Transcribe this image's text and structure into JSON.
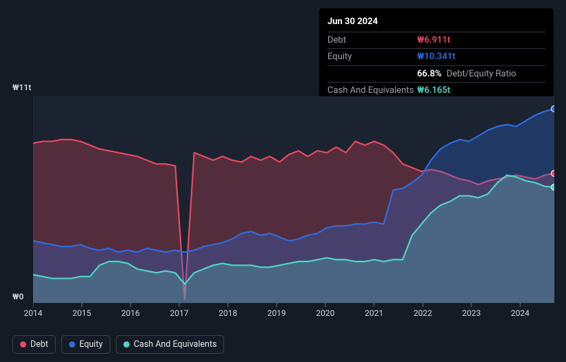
{
  "chart": {
    "type": "area",
    "background_color": "#151b24",
    "plot_bg": "#1b2330",
    "plot_border": "#2a3340",
    "grid_color": "#2a3340",
    "y_axis": {
      "max_label": "₩11t",
      "zero_label": "₩0",
      "ymax": 11,
      "ymin": 0
    },
    "x_axis": {
      "ticks": [
        "2014",
        "2015",
        "2016",
        "2017",
        "2018",
        "2019",
        "2020",
        "2021",
        "2022",
        "2023",
        "2024"
      ]
    },
    "series": [
      {
        "id": "debt",
        "label": "Debt",
        "color": "#e8495f",
        "fill": "rgba(232,73,95,0.28)",
        "values": [
          8.5,
          8.6,
          8.6,
          8.7,
          8.7,
          8.6,
          8.4,
          8.2,
          8.1,
          8.0,
          7.9,
          7.8,
          7.6,
          7.4,
          7.4,
          7.3,
          0.2,
          8.0,
          7.8,
          7.6,
          7.8,
          7.6,
          7.5,
          7.8,
          7.6,
          7.8,
          7.5,
          7.9,
          8.1,
          7.8,
          8.1,
          8.0,
          8.3,
          8.0,
          8.6,
          8.4,
          8.6,
          8.4,
          8.0,
          7.4,
          7.2,
          7.0,
          7.1,
          7.0,
          6.8,
          6.6,
          6.5,
          6.3,
          6.5,
          6.6,
          6.7,
          6.8,
          6.7,
          6.6,
          6.8,
          6.9
        ]
      },
      {
        "id": "equity",
        "label": "Equity",
        "color": "#2d6cdf",
        "fill": "rgba(45,108,223,0.30)",
        "values": [
          3.3,
          3.2,
          3.1,
          3.0,
          3.0,
          3.1,
          2.9,
          2.8,
          2.9,
          2.7,
          2.8,
          2.7,
          2.9,
          2.8,
          2.7,
          2.8,
          2.7,
          2.8,
          3.0,
          3.1,
          3.2,
          3.4,
          3.7,
          3.8,
          3.6,
          3.7,
          3.5,
          3.3,
          3.4,
          3.6,
          3.7,
          4.0,
          4.1,
          4.1,
          4.2,
          4.2,
          4.3,
          4.2,
          6.0,
          6.1,
          6.4,
          6.8,
          7.6,
          8.2,
          8.5,
          8.7,
          8.6,
          8.9,
          9.2,
          9.4,
          9.5,
          9.4,
          9.7,
          10.0,
          10.2,
          10.34
        ]
      },
      {
        "id": "cash",
        "label": "Cash And Equivalents",
        "color": "#4fd6c3",
        "fill": "rgba(79,214,195,0.25)",
        "values": [
          1.5,
          1.4,
          1.3,
          1.3,
          1.3,
          1.4,
          1.4,
          2.0,
          2.2,
          2.2,
          2.1,
          1.8,
          1.7,
          1.6,
          1.7,
          1.6,
          1.0,
          1.6,
          1.8,
          2.0,
          2.1,
          2.0,
          2.0,
          2.0,
          1.9,
          1.9,
          2.0,
          2.1,
          2.2,
          2.2,
          2.3,
          2.4,
          2.3,
          2.3,
          2.2,
          2.2,
          2.3,
          2.2,
          2.3,
          2.3,
          3.6,
          4.2,
          4.8,
          5.2,
          5.4,
          5.7,
          5.7,
          5.6,
          5.8,
          6.4,
          6.8,
          6.7,
          6.5,
          6.4,
          6.2,
          6.165
        ]
      }
    ]
  },
  "tooltip": {
    "title": "Jun 30 2024",
    "rows": [
      {
        "label": "Debt",
        "value": "₩6.911t",
        "color": "#e8495f"
      },
      {
        "label": "Equity",
        "value": "₩10.341t",
        "color": "#2d6cdf"
      },
      {
        "label": "",
        "value": "66.8%",
        "sub": "Debt/Equity Ratio",
        "color": "#ffffff"
      },
      {
        "label": "Cash And Equivalents",
        "value": "₩6.165t",
        "color": "#4fd6c3"
      }
    ]
  },
  "legend": [
    {
      "id": "debt",
      "label": "Debt",
      "color": "#e8495f"
    },
    {
      "id": "equity",
      "label": "Equity",
      "color": "#2d6cdf"
    },
    {
      "id": "cash",
      "label": "Cash And Equivalents",
      "color": "#4fd6c3"
    }
  ]
}
